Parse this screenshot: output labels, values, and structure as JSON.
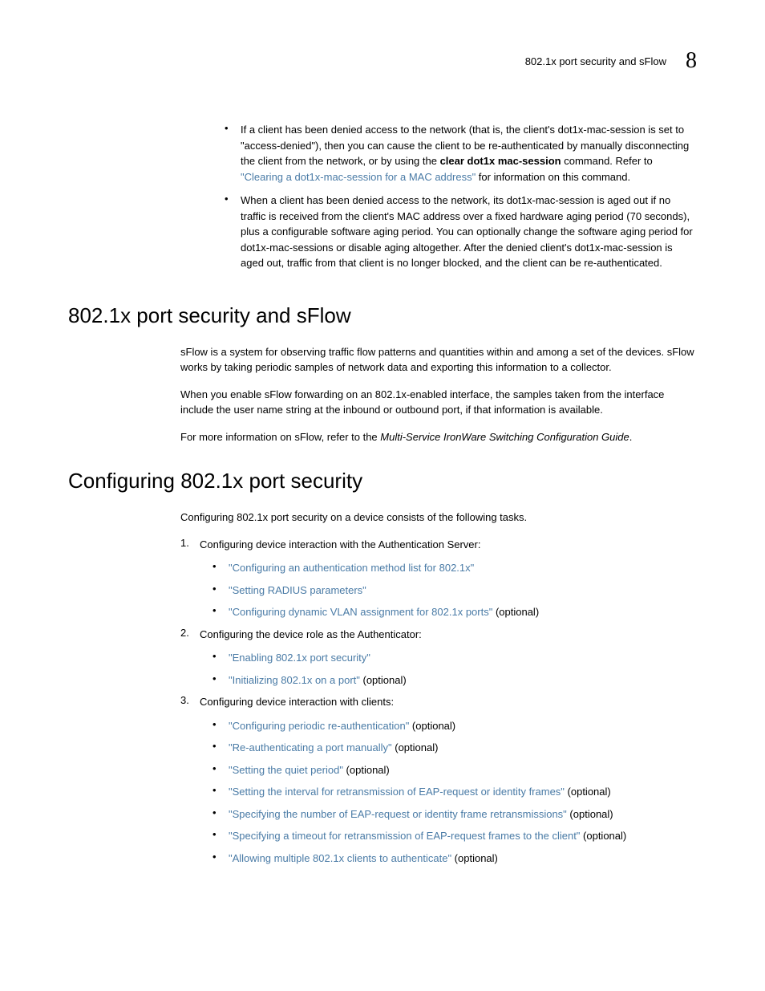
{
  "header": {
    "title": "802.1x port security and sFlow",
    "chapter": "8"
  },
  "top_bullets": [
    {
      "text_before": "If a client has been denied access to the network (that is, the client's dot1x-mac-session is set to \"access-denied\"), then you can cause the client to be re-authenticated by manually disconnecting the client from the network, or by using the ",
      "bold_text": "clear dot1x mac-session",
      "text_mid": " command. Refer to ",
      "link_text": "\"Clearing a dot1x-mac-session for a MAC address\"",
      "text_after": " for information on this command."
    },
    {
      "text": "When a client has been denied access to the network, its dot1x-mac-session is aged out if no traffic is received from the client's MAC address over a fixed hardware aging period (70 seconds), plus a configurable software aging period. You can optionally change the software aging period for dot1x-mac-sessions or disable aging altogether. After the denied client's dot1x-mac-session is aged out, traffic from that client is no longer blocked, and the client can be re-authenticated."
    }
  ],
  "section1": {
    "heading": "802.1x port security and sFlow",
    "para1": "sFlow is a system for observing traffic flow patterns and quantities within and among a set of the devices. sFlow works by taking periodic samples of network data and exporting this information to a collector.",
    "para2": "When you enable sFlow forwarding on an 802.1x-enabled interface, the samples taken from the interface include the user name string at the inbound or outbound port, if that information is available.",
    "para3_before": "For more information on sFlow, refer to the ",
    "para3_italic": "Multi-Service IronWare Switching Configuration Guide",
    "para3_after": "."
  },
  "section2": {
    "heading": "Configuring 802.1x port security",
    "intro": "Configuring 802.1x port security on a device consists of the following tasks.",
    "items": [
      {
        "number": "1.",
        "text": "Configuring device interaction with the Authentication Server:",
        "subs": [
          {
            "link": "\"Configuring an authentication method list  for 802.1x\"",
            "suffix": ""
          },
          {
            "link": "\"Setting RADIUS parameters\"",
            "suffix": ""
          },
          {
            "link": "\"Configuring dynamic VLAN assignment for  802.1x ports\"",
            "suffix": " (optional)"
          }
        ]
      },
      {
        "number": "2.",
        "text": "Configuring the device role as the Authenticator:",
        "subs": [
          {
            "link": "\"Enabling 802.1x port security\"",
            "suffix": ""
          },
          {
            "link": "\"Initializing 802.1x on a port\"",
            "suffix": " (optional)"
          }
        ]
      },
      {
        "number": "3.",
        "text": "Configuring device interaction with clients:",
        "subs": [
          {
            "link": "\"Configuring periodic re-authentication\"",
            "suffix": " (optional)"
          },
          {
            "link": "\"Re-authenticating a port manually\"",
            "suffix": " (optional)"
          },
          {
            "link": "\"Setting the quiet period\"",
            "suffix": " (optional)"
          },
          {
            "link": "\"Setting the interval for retransmission of EAP-request or identity frames\"",
            "suffix": " (optional)"
          },
          {
            "link": "\"Specifying the number of EAP-request or  identity frame retransmissions\"",
            "suffix": " (optional)"
          },
          {
            "link": "\"Specifying a timeout for retransmission of EAP-request frames to the client\"",
            "suffix": " (optional)"
          },
          {
            "link": "\"Allowing multiple 802.1x clients to authenticate\"",
            "suffix": " (optional)"
          }
        ]
      }
    ]
  }
}
